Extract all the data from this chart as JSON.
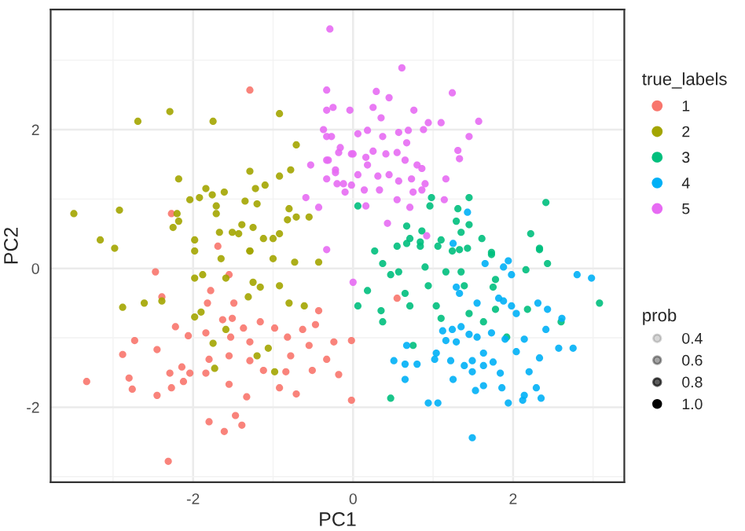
{
  "chart_data": {
    "type": "scatter",
    "xlabel": "PC1",
    "ylabel": "PC2",
    "legend_title": "true_labels",
    "legend": "right",
    "grid": true,
    "marker": "circle",
    "xlim": [
      -3.78,
      3.39
    ],
    "ylim": [
      -3.08,
      3.73
    ],
    "xticks": [
      -2,
      0,
      2
    ],
    "yticks": [
      -2,
      0,
      2
    ],
    "annotations": [
      "prob",
      "0.4",
      "0.6",
      "0.8",
      "1.0"
    ],
    "series": [
      {
        "name": "1",
        "color": "#f8766d",
        "x": [
          -1.29,
          -2.27,
          -2.47,
          -2.39,
          -1.69,
          -1.55,
          -1.78,
          -1.49,
          -1.82,
          -2.22,
          -2.06,
          -1.84,
          -1.63,
          -1.51,
          -1.37,
          -1.16,
          -0.98,
          -0.82,
          -0.63,
          -0.47,
          -2.73,
          -1.53,
          -1.29,
          -2.45,
          -2.88,
          -2.14,
          -2.29,
          -2.04,
          -1.84,
          -1.8,
          -1.55,
          -1.29,
          -1.12,
          -0.84,
          -0.78,
          -0.51,
          -0.33,
          -0.18,
          -0.24,
          -0.55,
          -3.33,
          -2.8,
          -2.76,
          -2.45,
          -2.27,
          -2.12,
          -1.55,
          -1.33,
          -0.92,
          -0.71,
          -1.8,
          -1.47,
          -1.39,
          -1.61,
          -2.31,
          -0.02,
          -0.43,
          -0.02,
          0.55
        ],
        "values": [
          2.57,
          0.79,
          -0.05,
          -0.41,
          0.32,
          -0.09,
          -0.32,
          -0.5,
          -0.5,
          -0.84,
          -0.97,
          -0.93,
          -0.74,
          -0.72,
          -0.86,
          -0.77,
          -0.86,
          -0.99,
          -0.88,
          -0.81,
          -1.04,
          -0.99,
          -1.06,
          -1.17,
          -1.24,
          -1.42,
          -1.51,
          -1.51,
          -1.51,
          -1.31,
          -1.26,
          -1.33,
          -1.47,
          -1.49,
          -1.26,
          -1.47,
          -1.31,
          -1.53,
          -1.06,
          -1.11,
          -1.63,
          -1.58,
          -1.74,
          -1.83,
          -1.72,
          -1.63,
          -1.67,
          -1.85,
          -1.72,
          -1.81,
          -2.21,
          -2.12,
          -2.26,
          -2.35,
          -2.78,
          -1.9,
          -0.61,
          -1.04,
          -0.43
        ]
      },
      {
        "name": "2",
        "color": "#a3a500",
        "x": [
          -2.69,
          -2.29,
          -1.75,
          -0.92,
          -0.71,
          -2.18,
          -1.84,
          -1.61,
          -1.29,
          -1.1,
          -0.92,
          -0.78,
          -2.04,
          -1.92,
          -1.76,
          -1.71,
          -1.35,
          -1.2,
          -1.22,
          -3.49,
          -2.92,
          -2.2,
          -2.18,
          -2.25,
          -1.71,
          -1.39,
          -1.25,
          -0.8,
          -0.71,
          -0.82,
          -0.92,
          -1.12,
          -1.0,
          -3.16,
          -2.98,
          -1.98,
          -1.67,
          -1.51,
          -1.43,
          -1.29,
          -0.55,
          -1.98,
          -1.65,
          -1.29,
          -1.0,
          -0.73,
          -0.43,
          -1.98,
          -1.88,
          -1.59,
          -1.25,
          -1.16,
          -0.92,
          -2.61,
          -2.39,
          -1.9,
          -1.98,
          -1.31,
          -0.8,
          -0.61,
          -1.59,
          -1.75,
          -1.06,
          -1.2,
          -1.73,
          -0.98,
          -2.88
        ],
        "values": [
          2.12,
          2.26,
          2.12,
          2.23,
          1.78,
          1.29,
          1.15,
          1.1,
          1.4,
          1.2,
          1.33,
          1.42,
          0.99,
          1.02,
          1.06,
          0.9,
          0.97,
          0.93,
          1.15,
          0.79,
          0.84,
          0.79,
          0.68,
          0.59,
          0.79,
          0.63,
          0.59,
          0.86,
          0.74,
          0.7,
          0.5,
          0.43,
          0.43,
          0.41,
          0.29,
          0.41,
          0.52,
          0.52,
          0.5,
          0.25,
          0.74,
          0.25,
          0.14,
          0.25,
          0.14,
          0.09,
          0.09,
          -0.14,
          -0.09,
          -0.14,
          -0.2,
          -0.27,
          -0.25,
          -0.5,
          -0.47,
          -0.63,
          -0.7,
          -0.41,
          -0.5,
          -0.54,
          -0.88,
          -1.08,
          -1.15,
          -1.26,
          -1.44,
          -1.49,
          -0.56
        ]
      },
      {
        "name": "3",
        "color": "#00bf7d",
        "x": [
          0.98,
          0.96,
          1.45,
          1.31,
          0.67,
          0.86,
          1.29,
          1.45,
          1.35,
          1.61,
          2.41,
          2.22,
          2.33,
          1.73,
          0.71,
          0.84,
          1.1,
          1.33,
          0.06,
          0.27,
          0.55,
          0.67,
          0.84,
          1.06,
          1.24,
          1.43,
          1.73,
          0.37,
          0.47,
          0.57,
          0.9,
          0.94,
          1.16,
          1.35,
          1.39,
          1.78,
          1.75,
          2.16,
          0.18,
          0.06,
          0.35,
          0.71,
          0.65,
          1.04,
          1.1,
          1.45,
          1.63,
          1.78,
          1.92,
          2.18,
          0.37,
          0.75,
          0.47,
          2.6,
          2.33,
          2.43,
          3.08
        ],
        "values": [
          1.02,
          0.9,
          1.02,
          0.86,
          0.61,
          0.54,
          0.68,
          0.63,
          0.52,
          0.43,
          0.95,
          0.5,
          0.27,
          0.23,
          0.43,
          0.38,
          0.41,
          0.27,
          0.9,
          0.25,
          0.32,
          0.36,
          0.32,
          0.32,
          0.25,
          0.29,
          0.2,
          0.07,
          -0.09,
          -0.05,
          0.02,
          -0.25,
          -0.05,
          -0.05,
          -0.25,
          -0.16,
          -0.27,
          -0.02,
          -0.32,
          -0.54,
          -0.61,
          -0.54,
          -0.36,
          -0.54,
          -0.72,
          -0.65,
          -0.77,
          -0.59,
          -0.99,
          -0.59,
          -0.77,
          -1.11,
          -1.87,
          -0.77,
          0.29,
          0.07,
          -0.5
        ]
      },
      {
        "name": "4",
        "color": "#00b0f6",
        "x": [
          1.25,
          1.43,
          1.65,
          1.88,
          1.94,
          1.98,
          1.29,
          1.33,
          1.55,
          1.82,
          1.88,
          1.98,
          2.04,
          2.31,
          2.43,
          2.61,
          2.41,
          2.8,
          1.12,
          1.24,
          1.35,
          1.45,
          1.16,
          1.29,
          1.55,
          1.73,
          1.9,
          2.14,
          2.57,
          2.75,
          0.67,
          1.04,
          0.51,
          0.65,
          0.8,
          1.02,
          1.22,
          1.39,
          1.49,
          1.63,
          1.75,
          2.04,
          2.33,
          1.49,
          1.63,
          0.65,
          1.25,
          1.84,
          2.2,
          1.53,
          1.63,
          1.86,
          2.29,
          0.94,
          1.06,
          1.94,
          2.12,
          2.14,
          2.35,
          1.49,
          2.98
        ],
        "values": [
          0.36,
          0.81,
          0.07,
          0.02,
          0.11,
          -0.09,
          -0.27,
          -0.36,
          -0.5,
          -0.43,
          -0.47,
          -0.54,
          -0.65,
          -0.5,
          -0.59,
          -0.72,
          -0.88,
          -0.09,
          -0.9,
          -0.88,
          -0.84,
          -0.95,
          -1.04,
          -1.06,
          -0.99,
          -0.93,
          -1.02,
          -1.02,
          -1.15,
          -1.15,
          -1.11,
          -1.22,
          -1.33,
          -1.38,
          -1.38,
          -1.31,
          -1.33,
          -1.4,
          -1.33,
          -1.22,
          -1.35,
          -1.2,
          -1.29,
          -1.49,
          -1.4,
          -1.6,
          -1.6,
          -1.51,
          -1.49,
          -1.76,
          -1.69,
          -1.72,
          -1.72,
          -1.94,
          -1.94,
          -1.94,
          -1.9,
          -1.83,
          -1.87,
          -2.44,
          -0.14
        ]
      },
      {
        "name": "5",
        "color": "#e76bf3",
        "x": [
          -0.29,
          0.61,
          1.24,
          1.57,
          1.45,
          1.31,
          1.33,
          1.16,
          -0.33,
          0.29,
          0.45,
          0.76,
          0.94,
          1.1,
          -0.33,
          -0.04,
          0.25,
          0.35,
          -0.37,
          -0.33,
          -0.16,
          0.06,
          0.18,
          0.37,
          0.57,
          0.69,
          0.88,
          0.67,
          0.55,
          0.0,
          0.16,
          0.25,
          0.41,
          -0.33,
          -0.22,
          0.06,
          0.18,
          0.31,
          0.45,
          0.65,
          0.8,
          0.86,
          -0.33,
          -0.2,
          -0.02,
          0.33,
          0.57,
          0.73,
          0.9,
          -0.1,
          0.14,
          0.75,
          0.86,
          0.55,
          0.16,
          0.71,
          0.43,
          0.92,
          1.14,
          -0.33,
          -0.27,
          -0.18,
          -0.02,
          -0.31,
          -0.22,
          -0.12,
          -0.59,
          -0.53,
          -0.43,
          -0.25,
          0.0
        ],
        "values": [
          3.45,
          2.89,
          2.53,
          2.12,
          1.9,
          1.7,
          1.58,
          1.29,
          2.57,
          2.55,
          2.46,
          2.28,
          2.1,
          2.1,
          2.28,
          2.28,
          2.32,
          2.17,
          2.0,
          1.9,
          1.74,
          1.94,
          1.99,
          1.9,
          1.96,
          1.99,
          2.0,
          1.81,
          1.67,
          1.65,
          1.6,
          1.69,
          1.65,
          1.56,
          1.42,
          1.35,
          1.49,
          1.33,
          1.35,
          1.56,
          1.49,
          1.44,
          1.29,
          1.22,
          1.2,
          1.13,
          1.26,
          1.29,
          1.22,
          1.1,
          1.13,
          1.1,
          1.13,
          0.99,
          0.9,
          0.88,
          0.65,
          0.47,
          0.99,
          0.27,
          1.9,
          1.67,
          1.65,
          1.56,
          1.38,
          1.22,
          1.02,
          1.49,
          0.88,
          2.32,
          -0.2
        ]
      }
    ]
  }
}
